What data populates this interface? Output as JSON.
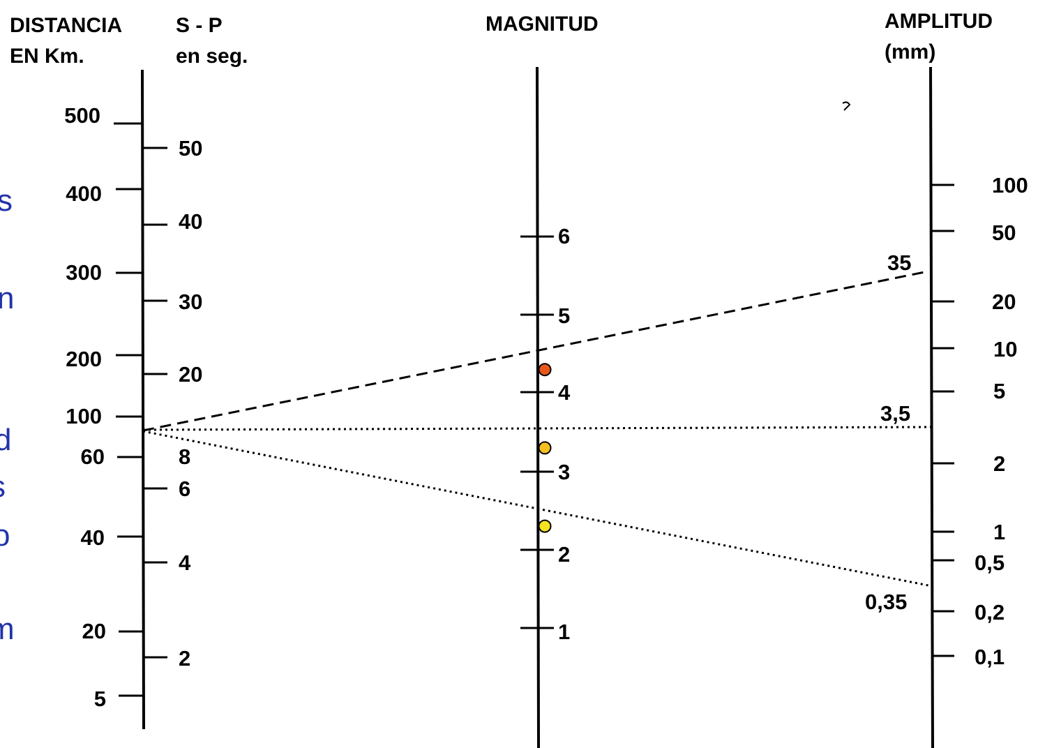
{
  "headers": {
    "distance": [
      "DISTANCIA",
      "EN Km."
    ],
    "sp": [
      "S - P",
      "en seg."
    ],
    "magnitude": "MAGNITUD",
    "amplitude": [
      "AMPLITUD",
      "(mm)"
    ]
  },
  "scales": {
    "distance": [
      "500",
      "400",
      "300",
      "200",
      "100",
      "60",
      "40",
      "20",
      "5"
    ],
    "sp": [
      "50",
      "40",
      "30",
      "20",
      "8",
      "6",
      "4",
      "2"
    ],
    "magnitude": [
      "6",
      "5",
      "4",
      "3",
      "2",
      "1"
    ],
    "amplitude": [
      "100",
      "50",
      "20",
      "10",
      "5",
      "2",
      "1",
      "0,5",
      "0,2",
      "0,1"
    ]
  },
  "lines": [
    {
      "style": "dashed",
      "amplitude_label": "35"
    },
    {
      "style": "dotted",
      "amplitude_label": "3,5"
    },
    {
      "style": "dotted",
      "amplitude_label": "0,35"
    }
  ],
  "markers": [
    {
      "magnitude": 4.3,
      "color": "#e8581b"
    },
    {
      "magnitude": 3.3,
      "color": "#f5c01f"
    },
    {
      "magnitude": 2.3,
      "color": "#f5e31f"
    }
  ],
  "side_text_fragments": [
    "s",
    "n",
    "d",
    "s",
    "o",
    "m"
  ]
}
